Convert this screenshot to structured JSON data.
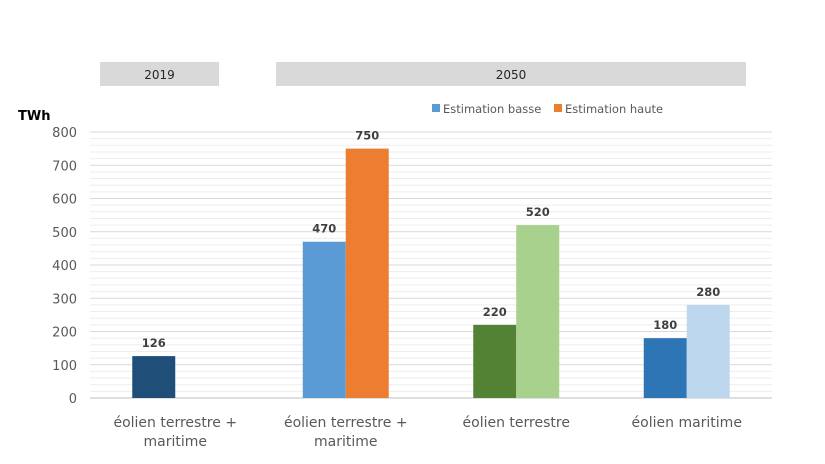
{
  "chart_data": {
    "type": "bar",
    "ylabel": "TWh",
    "ylim": [
      0,
      800
    ],
    "yticks": [
      0,
      100,
      200,
      300,
      400,
      500,
      600,
      700,
      800
    ],
    "grid": true,
    "period_headers": [
      "2019",
      "2050"
    ],
    "legend": {
      "position": "top-right",
      "entries": [
        {
          "name": "Estimation basse",
          "color": "#5B9BD5"
        },
        {
          "name": "Estimation haute",
          "color": "#ED7D31"
        }
      ]
    },
    "categories": [
      {
        "label": [
          "éolien terrestre +",
          "maritime"
        ],
        "bars": [
          {
            "value": 126,
            "label": "126",
            "color": "#1F4E79"
          }
        ]
      },
      {
        "label": [
          "éolien terrestre +",
          "maritime"
        ],
        "bars": [
          {
            "value": 470,
            "label": "470",
            "color": "#5B9BD5"
          },
          {
            "value": 750,
            "label": "750",
            "color": "#ED7D31"
          }
        ]
      },
      {
        "label": [
          "éolien terrestre"
        ],
        "bars": [
          {
            "value": 220,
            "label": "220",
            "color": "#548235"
          },
          {
            "value": 520,
            "label": "520",
            "color": "#A9D18E"
          }
        ]
      },
      {
        "label": [
          "éolien maritime"
        ],
        "bars": [
          {
            "value": 180,
            "label": "180",
            "color": "#2E75B6"
          },
          {
            "value": 280,
            "label": "280",
            "color": "#BDD7EE"
          }
        ]
      }
    ]
  }
}
